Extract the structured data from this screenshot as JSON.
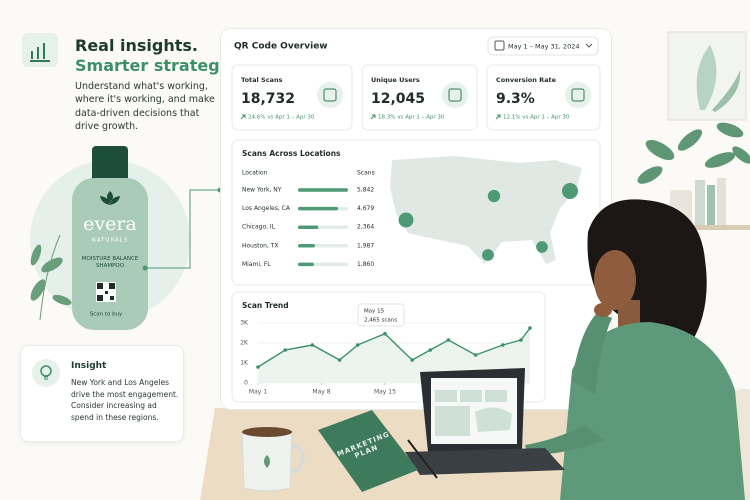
{
  "hero": {
    "title_1": "Real insights.",
    "title_2": "Smarter strategy.",
    "body": "Understand what's working, where it's working, and make data-driven decisions that drive growth."
  },
  "product": {
    "brand": "evera",
    "sub": "NATURALS",
    "name": "MOISTURE BALANCE SHAMPOO",
    "cta": "Scan to buy"
  },
  "insight": {
    "title": "Insight",
    "body": "New York and Los Angeles drive the most engagement. Consider increasing ad spend in these regions."
  },
  "dashboard": {
    "title": "QR Code Overview",
    "date_range": "May 1 – May 31, 2024",
    "kpis": [
      {
        "label": "Total Scans",
        "value": "18,732",
        "change": "24.6% vs Apr 1 – Apr 30"
      },
      {
        "label": "Unique Users",
        "value": "12,045",
        "change": "18.3% vs Apr 1 – Apr 30"
      },
      {
        "label": "Conversion Rate",
        "value": "9.3%",
        "change": "12.1% vs Apr 1 – Apr 30"
      }
    ],
    "locations": {
      "title": "Scans Across Locations",
      "col_location": "Location",
      "col_scans": "Scans",
      "categories": [
        "New York, NY",
        "Los Angeles, CA",
        "Chicago, IL",
        "Houston, TX",
        "Miami, FL"
      ],
      "values": [
        5842,
        4679,
        2364,
        1987,
        1860
      ],
      "value_labels": [
        "5,842",
        "4,679",
        "2,364",
        "1,987",
        "1,860"
      ]
    },
    "trend": {
      "type": "line",
      "title": "Scan Trend",
      "x": [
        1,
        4,
        7,
        10,
        12,
        15,
        18,
        20,
        22,
        25,
        28,
        30,
        31
      ],
      "values": [
        800,
        1650,
        1900,
        1150,
        1900,
        2465,
        1150,
        1650,
        2150,
        1400,
        1900,
        2150,
        2750
      ],
      "color": "#3f8f68",
      "xlim": [
        1,
        31
      ],
      "ylim": [
        0,
        3000
      ],
      "yticks": [
        0,
        {
          "value": 1000,
          "label": "1K"
        },
        {
          "value": 2000,
          "label": "2K"
        },
        {
          "value": 3000,
          "label": "3K"
        }
      ],
      "xticks": [
        {
          "value": 1,
          "label": "May 1"
        },
        {
          "value": 8,
          "label": "May 8"
        },
        {
          "value": 15,
          "label": "May 15"
        }
      ],
      "tooltip": {
        "date": "May 15",
        "value": "2,465 scans"
      }
    }
  },
  "book": "MARKETING PLAN"
}
